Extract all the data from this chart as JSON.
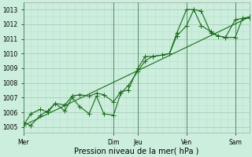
{
  "xlabel": "Pression niveau de la mer( hPa )",
  "bg_color": "#cceedd",
  "grid_major_color": "#aaccbb",
  "grid_minor_color": "#bbddd0",
  "line_color": "#1a6b1a",
  "dark_vline_color": "#558866",
  "ylim": [
    1004.6,
    1013.5
  ],
  "xlim": [
    0,
    9.3
  ],
  "day_labels": [
    "Mer",
    "Dim",
    "Jeu",
    "Ven",
    "Sam"
  ],
  "day_positions": [
    0,
    3.7,
    4.7,
    6.7,
    8.7
  ],
  "series1_x": [
    0,
    0.3,
    0.7,
    1.0,
    1.3,
    1.7,
    2.0,
    2.3,
    2.7,
    3.0,
    3.3,
    3.7,
    4.0,
    4.3,
    4.7,
    5.0,
    5.3,
    5.7,
    6.0,
    6.3,
    6.7,
    7.0,
    7.3,
    7.7,
    8.0,
    8.3,
    8.7,
    9.0,
    9.3
  ],
  "series1_y": [
    1005.3,
    1005.1,
    1005.8,
    1006.1,
    1006.6,
    1006.5,
    1007.1,
    1007.2,
    1007.1,
    1007.3,
    1007.2,
    1006.7,
    1007.4,
    1007.5,
    1009.0,
    1009.8,
    1009.8,
    1009.9,
    1010.0,
    1011.4,
    1013.0,
    1013.0,
    1011.9,
    1011.5,
    1011.2,
    1011.1,
    1012.3,
    1012.4,
    1012.4
  ],
  "series2_x": [
    0,
    0.3,
    0.7,
    1.0,
    1.3,
    1.7,
    2.0,
    2.3,
    2.7,
    3.0,
    3.3,
    3.7,
    4.0,
    4.3,
    4.7,
    5.0,
    5.3,
    5.7,
    6.0,
    6.3,
    6.7,
    7.0,
    7.3,
    7.7,
    8.0,
    8.3,
    8.7,
    9.0,
    9.3
  ],
  "series2_y": [
    1005.1,
    1005.9,
    1006.2,
    1006.0,
    1006.6,
    1006.1,
    1007.0,
    1006.4,
    1005.9,
    1007.1,
    1005.9,
    1005.8,
    1007.3,
    1007.8,
    1008.8,
    1009.5,
    1009.8,
    1009.9,
    1010.0,
    1011.2,
    1011.9,
    1013.0,
    1012.9,
    1011.4,
    1011.2,
    1011.1,
    1011.1,
    1012.4,
    1012.5
  ],
  "series3_x": [
    0,
    9.3
  ],
  "series3_y": [
    1005.1,
    1012.5
  ],
  "yticks": [
    1005,
    1006,
    1007,
    1008,
    1009,
    1010,
    1011,
    1012,
    1013
  ],
  "minor_ytick_interval": 0.5,
  "marker_size": 2.5,
  "line_width": 0.8,
  "xlabel_fontsize": 7,
  "tick_fontsize": 5.5
}
